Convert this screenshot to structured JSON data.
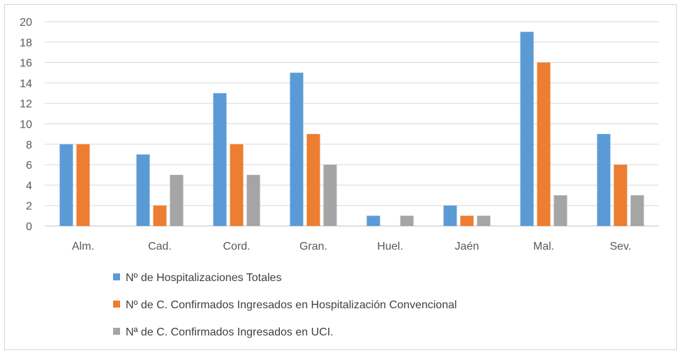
{
  "chart_data": {
    "type": "bar",
    "categories": [
      "Alm.",
      "Cad.",
      "Cord.",
      "Gran.",
      "Huel.",
      "Jaén",
      "Mal.",
      "Sev."
    ],
    "series": [
      {
        "name": "Nº de Hospitalizaciones Totales",
        "color": "#5b9bd5",
        "values": [
          8,
          7,
          13,
          15,
          1,
          2,
          19,
          9
        ]
      },
      {
        "name": "Nº de C. Confirmados Ingresados en Hospitalización Convencional",
        "color": "#ed7d31",
        "values": [
          8,
          2,
          8,
          9,
          0,
          1,
          16,
          6
        ]
      },
      {
        "name": "Nª de C. Confirmados Ingresados en UCI.",
        "color": "#a5a5a5",
        "values": [
          0,
          5,
          5,
          6,
          1,
          1,
          3,
          3
        ]
      }
    ],
    "ylim": [
      0,
      20
    ],
    "yticks": [
      "0",
      "2",
      "4",
      "6",
      "8",
      "10",
      "12",
      "14",
      "16",
      "18",
      "20"
    ],
    "grid": true,
    "legend_position": "bottom",
    "title": "",
    "xlabel": "",
    "ylabel": ""
  }
}
